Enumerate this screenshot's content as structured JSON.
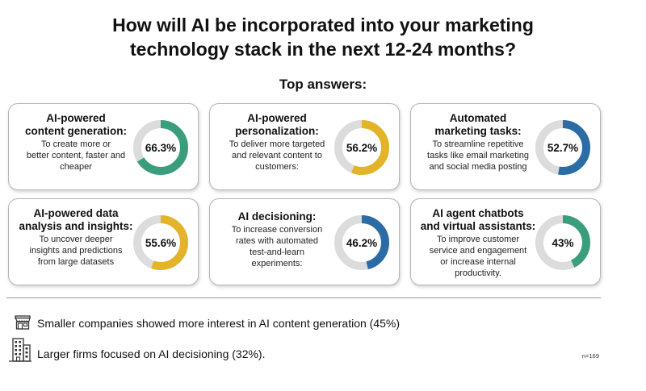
{
  "title_line1": "How will AI be incorporated into your marketing",
  "title_line2": "technology stack in the next 12-24 months?",
  "subtitle": "Top answers:",
  "colors": {
    "green": "#3a9e7c",
    "yellow": "#e3b42a",
    "blue": "#2c6ca4",
    "track": "#dcdcdc"
  },
  "chart_data": {
    "type": "donut",
    "unit": "%",
    "items": [
      {
        "title_lines": [
          "AI-powered",
          "content generation:"
        ],
        "description_lines": [
          "To create more or",
          "better content, faster and",
          "cheaper"
        ],
        "value": 66.3,
        "label": "66.3%",
        "color": "green"
      },
      {
        "title_lines": [
          "AI-powered",
          "personalization:"
        ],
        "description_lines": [
          "To deliver more targeted",
          "and relevant content to",
          "customers:"
        ],
        "value": 56.2,
        "label": "56.2%",
        "color": "yellow"
      },
      {
        "title_lines": [
          "Automated",
          "marketing tasks:"
        ],
        "description_lines": [
          "To streamline repetitive",
          "tasks like email marketing",
          "and social media posting"
        ],
        "value": 52.7,
        "label": "52.7%",
        "color": "blue"
      },
      {
        "title_lines": [
          "AI-powered data",
          "analysis and insights:"
        ],
        "description_lines": [
          "To uncover deeper",
          "insights and predictions",
          "from large datasets"
        ],
        "value": 55.6,
        "label": "55.6%",
        "color": "yellow"
      },
      {
        "title_lines": [
          "AI decisioning:"
        ],
        "description_lines": [
          "To increase conversion",
          "rates with automated",
          "test-and-learn",
          "experiments:"
        ],
        "value": 46.2,
        "label": "46.2%",
        "color": "blue"
      },
      {
        "title_lines": [
          "AI agent chatbots",
          "and virtual assistants:"
        ],
        "description_lines": [
          "To improve customer",
          "service and engagement",
          "or increase internal",
          "productivity."
        ],
        "value": 43,
        "label": "43%",
        "color": "green"
      }
    ]
  },
  "notes": [
    {
      "text": "Smaller companies showed more interest in AI content generation (45%)",
      "icon": "storefront-icon"
    },
    {
      "text": "Larger firms focused on AI decisioning (32%).",
      "icon": "office-building-icon"
    }
  ],
  "footnote": "n=169"
}
